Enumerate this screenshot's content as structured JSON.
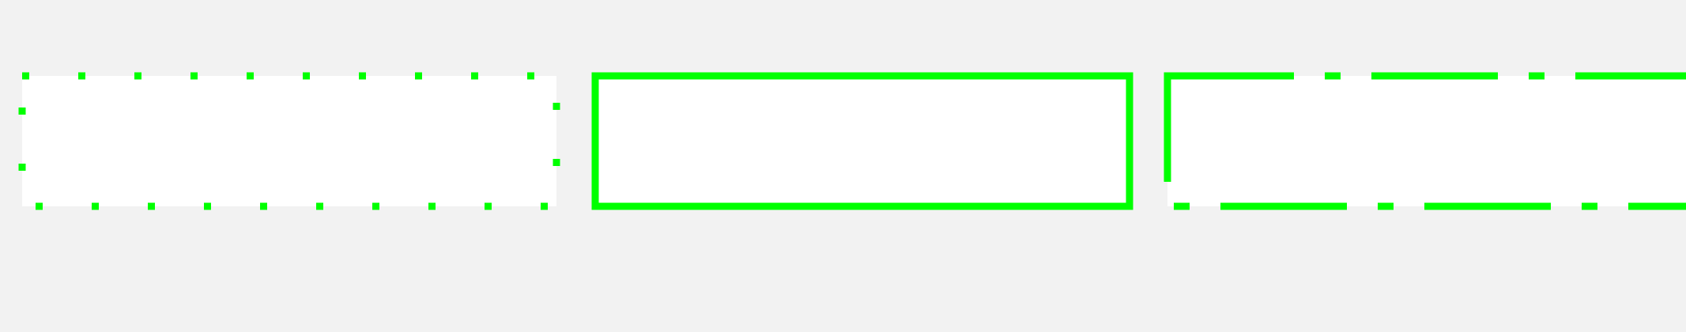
{
  "colors": {
    "background": "#f2f2f2",
    "box_fill": "#ffffff",
    "stroke": "#00ff00"
  },
  "boxes": [
    {
      "name": "dotted-border-box",
      "border_style": "dotted"
    },
    {
      "name": "solid-border-box",
      "border_style": "solid"
    },
    {
      "name": "dash-dot-border-box",
      "border_style": "dash-dot"
    }
  ]
}
